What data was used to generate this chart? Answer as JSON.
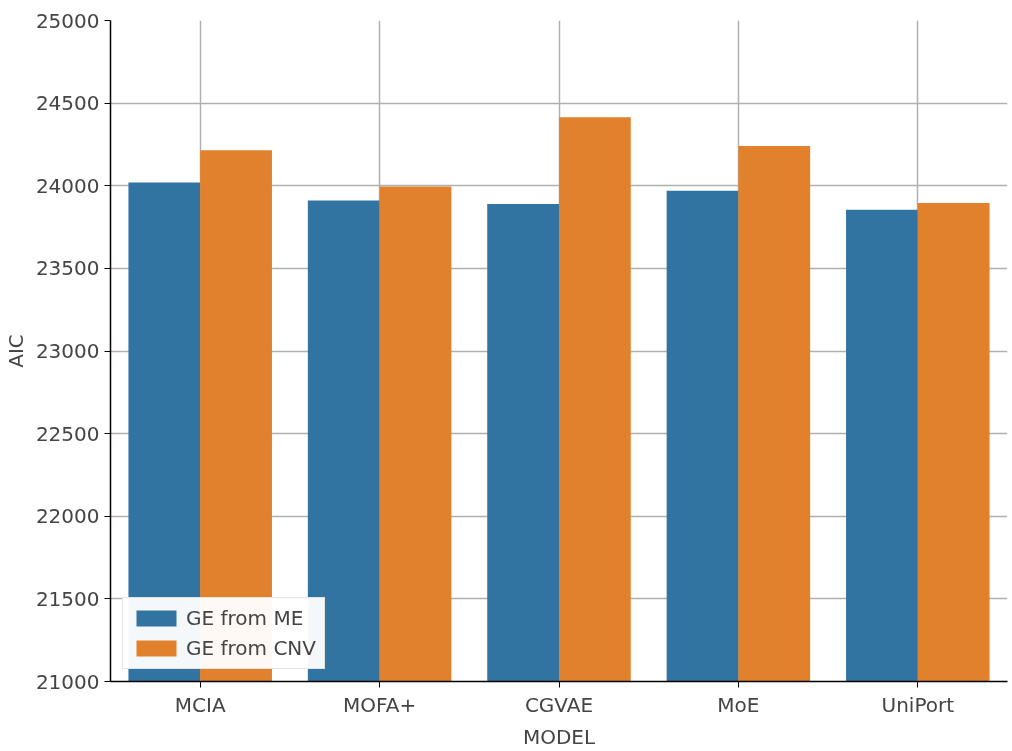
{
  "chart_data": {
    "type": "bar",
    "xlabel": "MODEL",
    "ylabel": "AIC",
    "categories": [
      "MCIA",
      "MOFA+",
      "CGVAE",
      "MoE",
      "UniPort"
    ],
    "series": [
      {
        "name": "GE from ME",
        "color": "#3274a1",
        "values": [
          24020,
          23910,
          23890,
          23970,
          23855
        ]
      },
      {
        "name": "GE from CNV",
        "color": "#e1812c",
        "values": [
          24215,
          23995,
          24415,
          24240,
          23895
        ]
      }
    ],
    "ylim": [
      21000,
      25000
    ],
    "yticks": [
      21000,
      21500,
      22000,
      22500,
      23000,
      23500,
      24000,
      24500,
      25000
    ],
    "grid": true,
    "legend": "bottom left"
  }
}
